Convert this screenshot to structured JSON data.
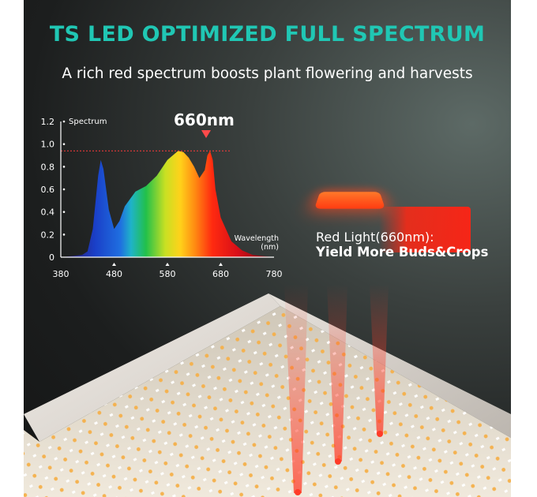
{
  "heading": {
    "title": "TS LED OPTIMIZED FULL SPECTRUM",
    "subtitle": "A rich red spectrum boosts plant flowering and harvests"
  },
  "peak": {
    "label": "660nm"
  },
  "callout": {
    "label": "Red Light(660nm):",
    "emphasis": "Yield More Buds&Crops"
  },
  "chart_data": {
    "type": "area",
    "ylabel": "Spectrum",
    "xlabel": "Wavelength (nm)",
    "xlim": [
      380,
      780
    ],
    "ylim": [
      0,
      1.2
    ],
    "x_ticks": [
      380,
      480,
      580,
      680,
      780
    ],
    "y_ticks": [
      0,
      0.2,
      0.4,
      0.6,
      0.8,
      1.0,
      1.2
    ],
    "reference_line": 0.94,
    "annotation": "660nm",
    "colors": {
      "axis": "#ffffff",
      "reference": "#ff3b3b",
      "title": "#20c7b4"
    },
    "series": [
      {
        "x": [
          380,
          400,
          420,
          430,
          440,
          450,
          455,
          460,
          470,
          480,
          490,
          500,
          520,
          540,
          560,
          580,
          600,
          610,
          620,
          630,
          640,
          650,
          655,
          660,
          665,
          670,
          680,
          700,
          720,
          740,
          760,
          780
        ],
        "values": [
          0.0,
          0.01,
          0.02,
          0.05,
          0.25,
          0.72,
          0.86,
          0.78,
          0.42,
          0.25,
          0.32,
          0.45,
          0.58,
          0.63,
          0.72,
          0.86,
          0.94,
          0.93,
          0.88,
          0.8,
          0.7,
          0.77,
          0.9,
          0.94,
          0.86,
          0.6,
          0.35,
          0.14,
          0.06,
          0.02,
          0.01,
          0.0
        ]
      }
    ]
  }
}
